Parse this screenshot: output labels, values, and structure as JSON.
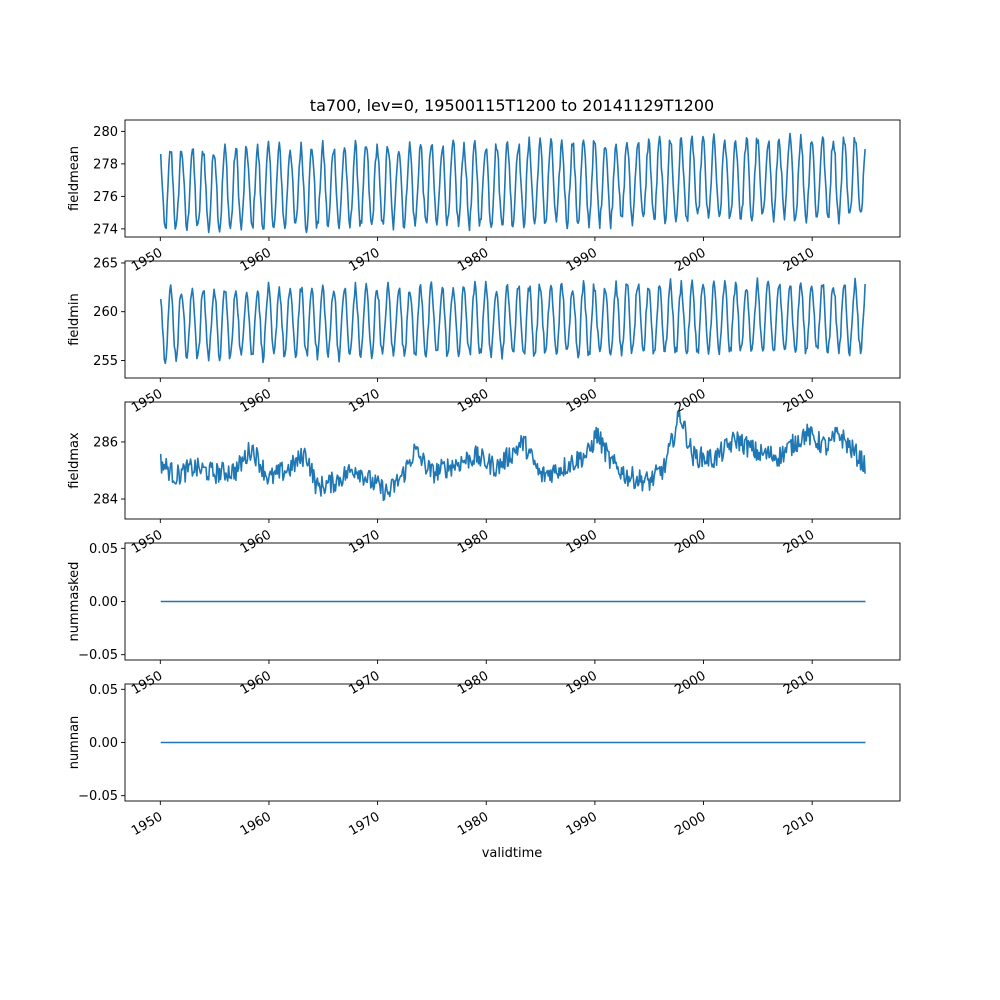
{
  "colors": {
    "line": "#1f77b4",
    "axes": "#000000",
    "background": "#ffffff"
  },
  "chart_data": {
    "type": "line",
    "title": "ta700, lev=0, 19500115T1200 to 20141129T1200",
    "xlabel": "validtime",
    "x_range": [
      "1950-01-15",
      "2014-11-29"
    ],
    "xlim": [
      "1946-10-01",
      "2018-02-01"
    ],
    "x_ticks": [
      "1950",
      "1960",
      "1970",
      "1980",
      "1990",
      "2000",
      "2010"
    ],
    "panels": [
      {
        "ylabel": "fieldmean",
        "ylim": [
          273.5,
          280.7
        ],
        "yticks": [
          "274",
          "276",
          "278",
          "280"
        ],
        "seasonal": {
          "low": 274.3,
          "high": 279.2,
          "trend_per_decade": 0.12
        }
      },
      {
        "ylabel": "fieldmin",
        "ylim": [
          253.2,
          265.2
        ],
        "yticks": [
          "255",
          "260",
          "265"
        ],
        "seasonal": {
          "low": 255.6,
          "high": 262.6,
          "trend_per_decade": 0.1
        }
      },
      {
        "ylabel": "fieldmax",
        "ylim": [
          283.3,
          287.4
        ],
        "yticks": [
          "284",
          "286"
        ],
        "series_points": [
          [
            "1950-01",
            285.3
          ],
          [
            "1951-06",
            284.8
          ],
          [
            "1953-01",
            285.1
          ],
          [
            "1955-01",
            284.9
          ],
          [
            "1957-01",
            285.0
          ],
          [
            "1958-06",
            285.8
          ],
          [
            "1960-01",
            284.7
          ],
          [
            "1962-01",
            285.1
          ],
          [
            "1963-06",
            285.6
          ],
          [
            "1964-06",
            284.4
          ],
          [
            "1966-01",
            284.6
          ],
          [
            "1968-01",
            285.1
          ],
          [
            "1969-06",
            284.6
          ],
          [
            "1971-01",
            284.2
          ],
          [
            "1972-06",
            284.9
          ],
          [
            "1973-06",
            285.7
          ],
          [
            "1975-01",
            284.9
          ],
          [
            "1977-01",
            285.2
          ],
          [
            "1979-01",
            285.5
          ],
          [
            "1981-01",
            285.1
          ],
          [
            "1983-06",
            286.0
          ],
          [
            "1985-01",
            284.8
          ],
          [
            "1987-01",
            285.1
          ],
          [
            "1989-06",
            285.6
          ],
          [
            "1990-03",
            286.3
          ],
          [
            "1991-06",
            285.3
          ],
          [
            "1993-01",
            284.8
          ],
          [
            "1995-01",
            284.6
          ],
          [
            "1996-06",
            285.1
          ],
          [
            "1997-11",
            287.0
          ],
          [
            "1999-01",
            285.5
          ],
          [
            "2001-01",
            285.4
          ],
          [
            "2003-01",
            286.1
          ],
          [
            "2005-01",
            285.6
          ],
          [
            "2007-01",
            285.5
          ],
          [
            "2009-06",
            286.3
          ],
          [
            "2011-06",
            285.8
          ],
          [
            "2012-06",
            286.3
          ],
          [
            "2014-11",
            285.2
          ]
        ]
      },
      {
        "ylabel": "nummasked",
        "ylim": [
          -0.055,
          0.055
        ],
        "yticks": [
          "−0.05",
          "0.00",
          "0.05"
        ],
        "constant": 0.0
      },
      {
        "ylabel": "numnan",
        "ylim": [
          -0.055,
          0.055
        ],
        "yticks": [
          "−0.05",
          "0.00",
          "0.05"
        ],
        "constant": 0.0
      }
    ]
  }
}
